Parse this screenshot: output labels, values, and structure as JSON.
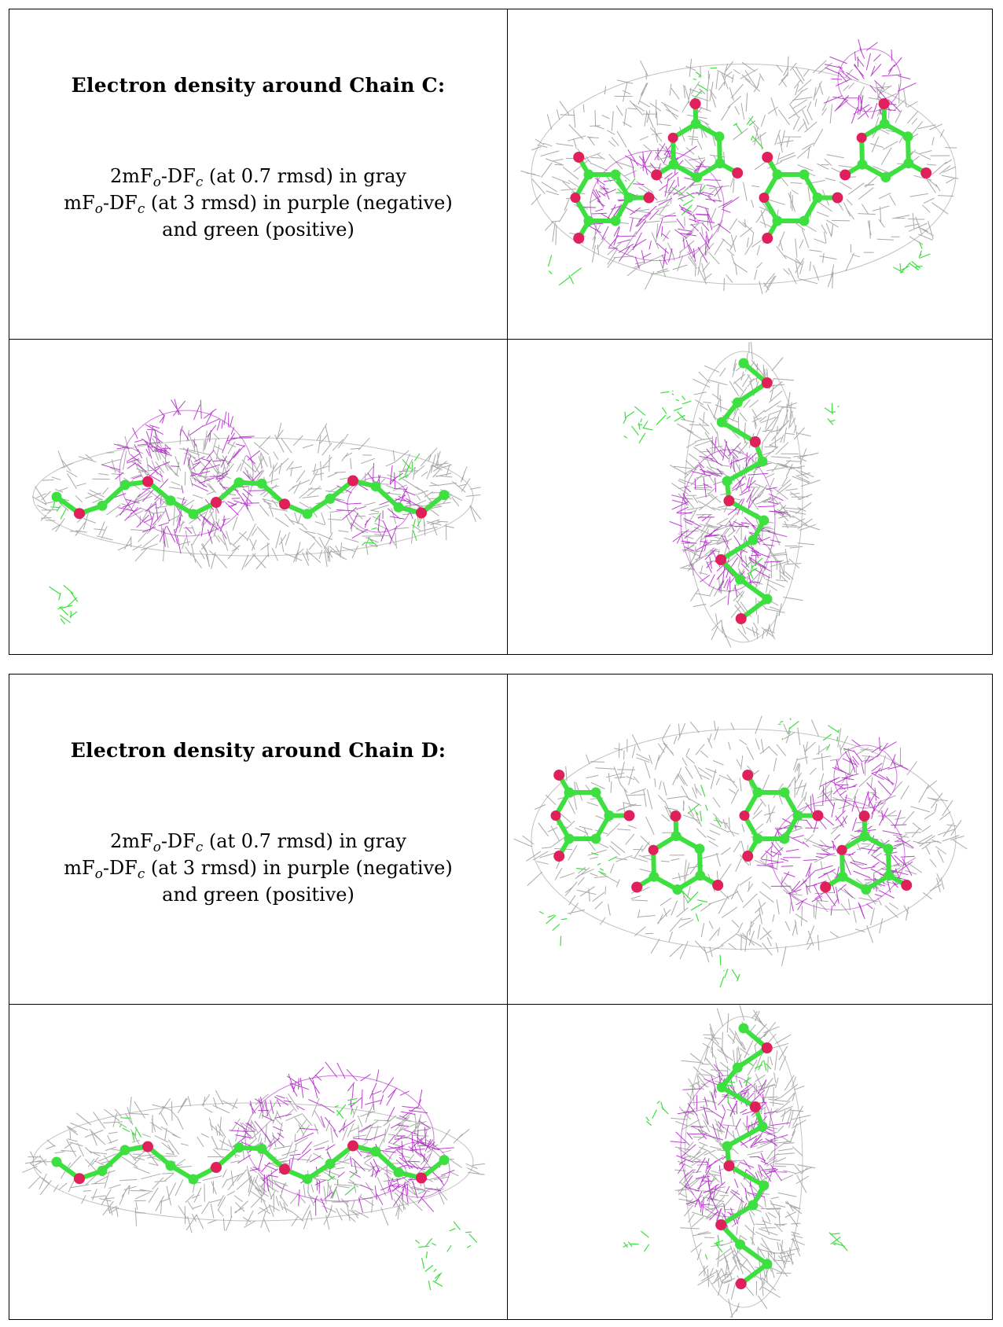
{
  "panels": [
    {
      "title": "Electron density around Chain C:",
      "desc": {
        "l1_a": "2mF",
        "l1_s1": "o",
        "l1_b": "-DF",
        "l1_s2": "c",
        "l1_c": " (at 0.7 rmsd) in gray",
        "l2_a": "mF",
        "l2_s1": "o",
        "l2_b": "-DF",
        "l2_s2": "c",
        "l2_c": " (at 3 rmsd) in purple (negative)",
        "l3": "and green (positive)"
      }
    },
    {
      "title": "Electron density around Chain D:",
      "desc": {
        "l1_a": "2mF",
        "l1_s1": "o",
        "l1_b": "-DF",
        "l1_s2": "c",
        "l1_c": " (at 0.7 rmsd) in gray",
        "l2_a": "mF",
        "l2_s1": "o",
        "l2_b": "-DF",
        "l2_s2": "c",
        "l2_c": " (at 3 rmsd) in purple (negative)",
        "l3": "and green (positive)"
      }
    }
  ],
  "colors": {
    "mesh_2fofc": "#9a9a9a",
    "mesh_negative": "#b020c8",
    "mesh_positive": "#3de03d",
    "carbon": "#3de040",
    "oxygen": "#e0205a",
    "border": "#000000"
  }
}
